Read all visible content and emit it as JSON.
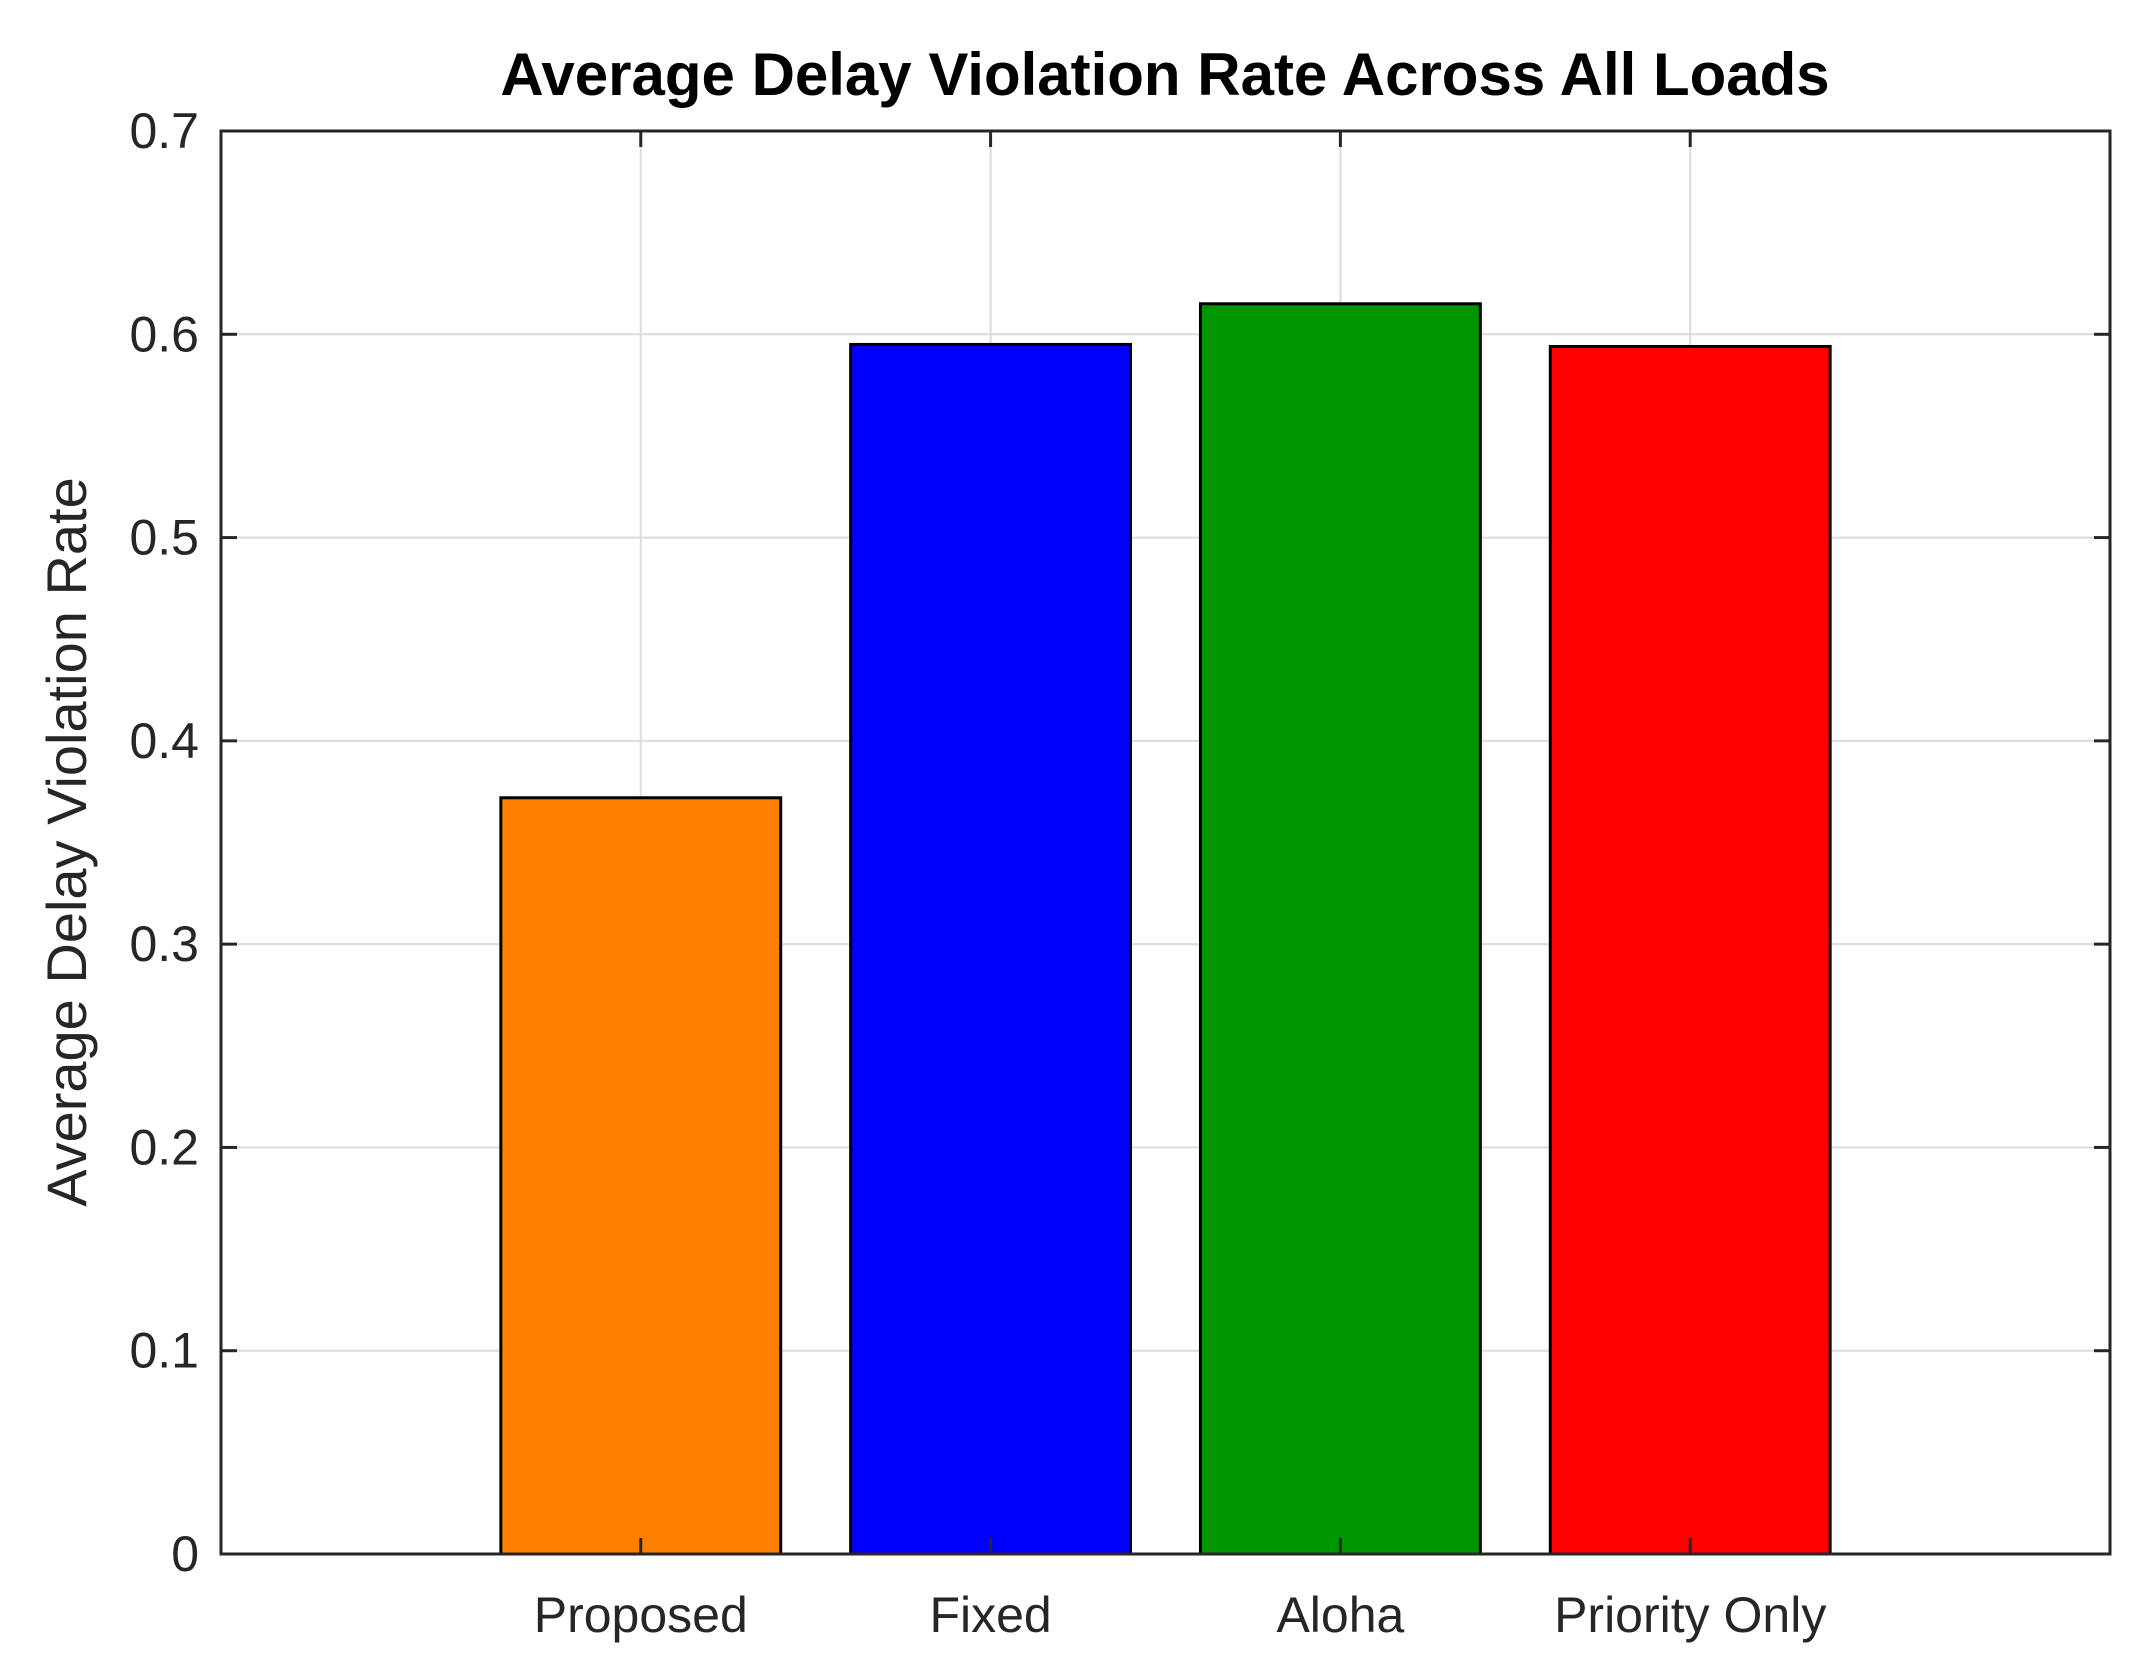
{
  "chart_data": {
    "type": "bar",
    "title": "Average Delay Violation Rate Across All Loads",
    "xlabel": "",
    "ylabel": "Average Delay Violation Rate",
    "categories": [
      "Proposed",
      "Fixed",
      "Aloha",
      "Priority Only"
    ],
    "values": [
      0.372,
      0.595,
      0.615,
      0.594
    ],
    "colors": [
      "#ff8000",
      "#0000ff",
      "#009600",
      "#ff0000"
    ],
    "xlim": [
      -0.2,
      5.2
    ],
    "ylim": [
      0,
      0.7
    ],
    "yticks": [
      0,
      0.1,
      0.2,
      0.3,
      0.4,
      0.5,
      0.6,
      0.7
    ],
    "ytick_labels": [
      "0",
      "0.1",
      "0.2",
      "0.3",
      "0.4",
      "0.5",
      "0.6",
      "0.7"
    ],
    "grid": true,
    "legend": "none"
  }
}
